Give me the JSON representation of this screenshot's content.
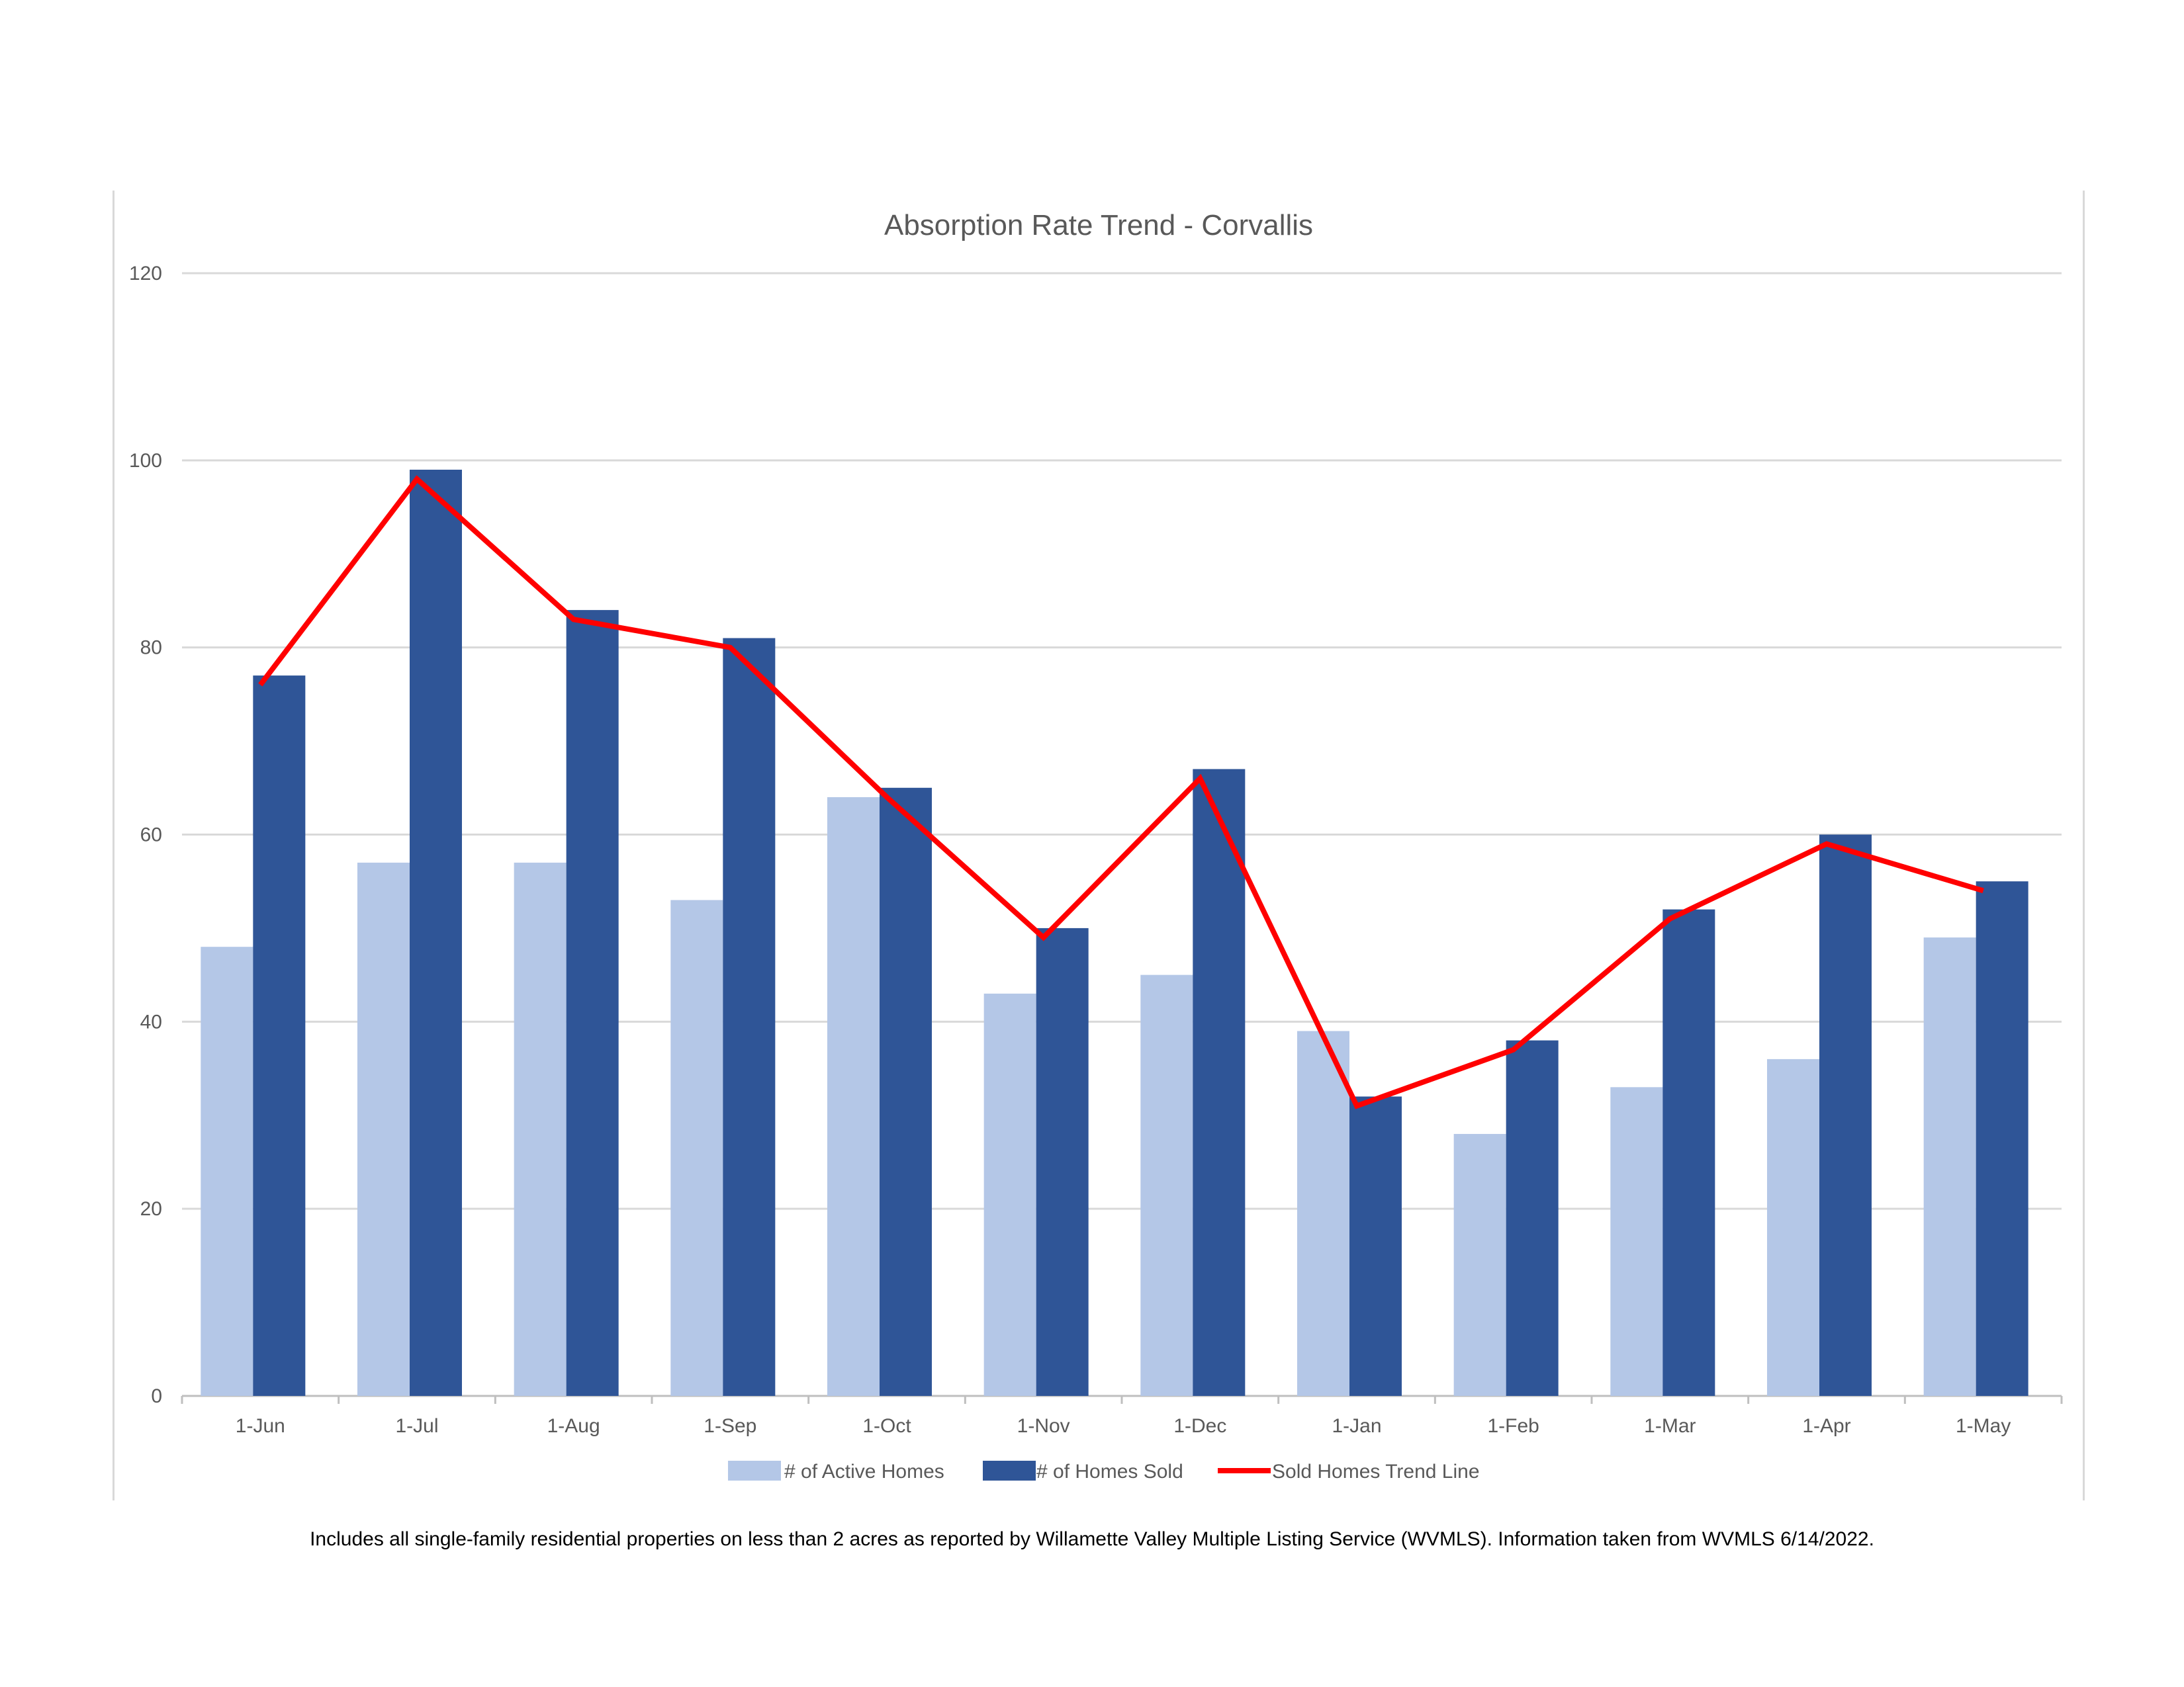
{
  "chart_data": {
    "type": "bar",
    "title": "Absorption Rate Trend - Corvallis",
    "categories": [
      "1-Jun",
      "1-Jul",
      "1-Aug",
      "1-Sep",
      "1-Oct",
      "1-Nov",
      "1-Dec",
      "1-Jan",
      "1-Feb",
      "1-Mar",
      "1-Apr",
      "1-May"
    ],
    "ylim": [
      0,
      120
    ],
    "yticks": [
      "0",
      "20",
      "40",
      "60",
      "80",
      "100",
      "120"
    ],
    "grid": true,
    "legend_position": "bottom",
    "series": [
      {
        "name": "# of Active Homes",
        "type": "bar",
        "color": "#b4c7e7",
        "values": [
          48,
          57,
          57,
          53,
          64,
          43,
          45,
          39,
          28,
          33,
          36,
          49
        ]
      },
      {
        "name": "# of Homes Sold",
        "type": "bar",
        "color": "#2f5597",
        "values": [
          77,
          99,
          84,
          81,
          65,
          50,
          67,
          32,
          38,
          52,
          60,
          55
        ]
      },
      {
        "name": "Sold Homes Trend Line",
        "type": "line",
        "color": "#ff0000",
        "values": [
          76,
          98,
          83,
          80,
          64,
          49,
          66,
          31,
          37,
          51,
          59,
          54
        ]
      }
    ]
  },
  "footnote": "Includes all single-family residential properties on less than 2 acres as reported by Willamette Valley Multiple Listing Service (WVMLS). Information taken from WVMLS 6/14/2022."
}
